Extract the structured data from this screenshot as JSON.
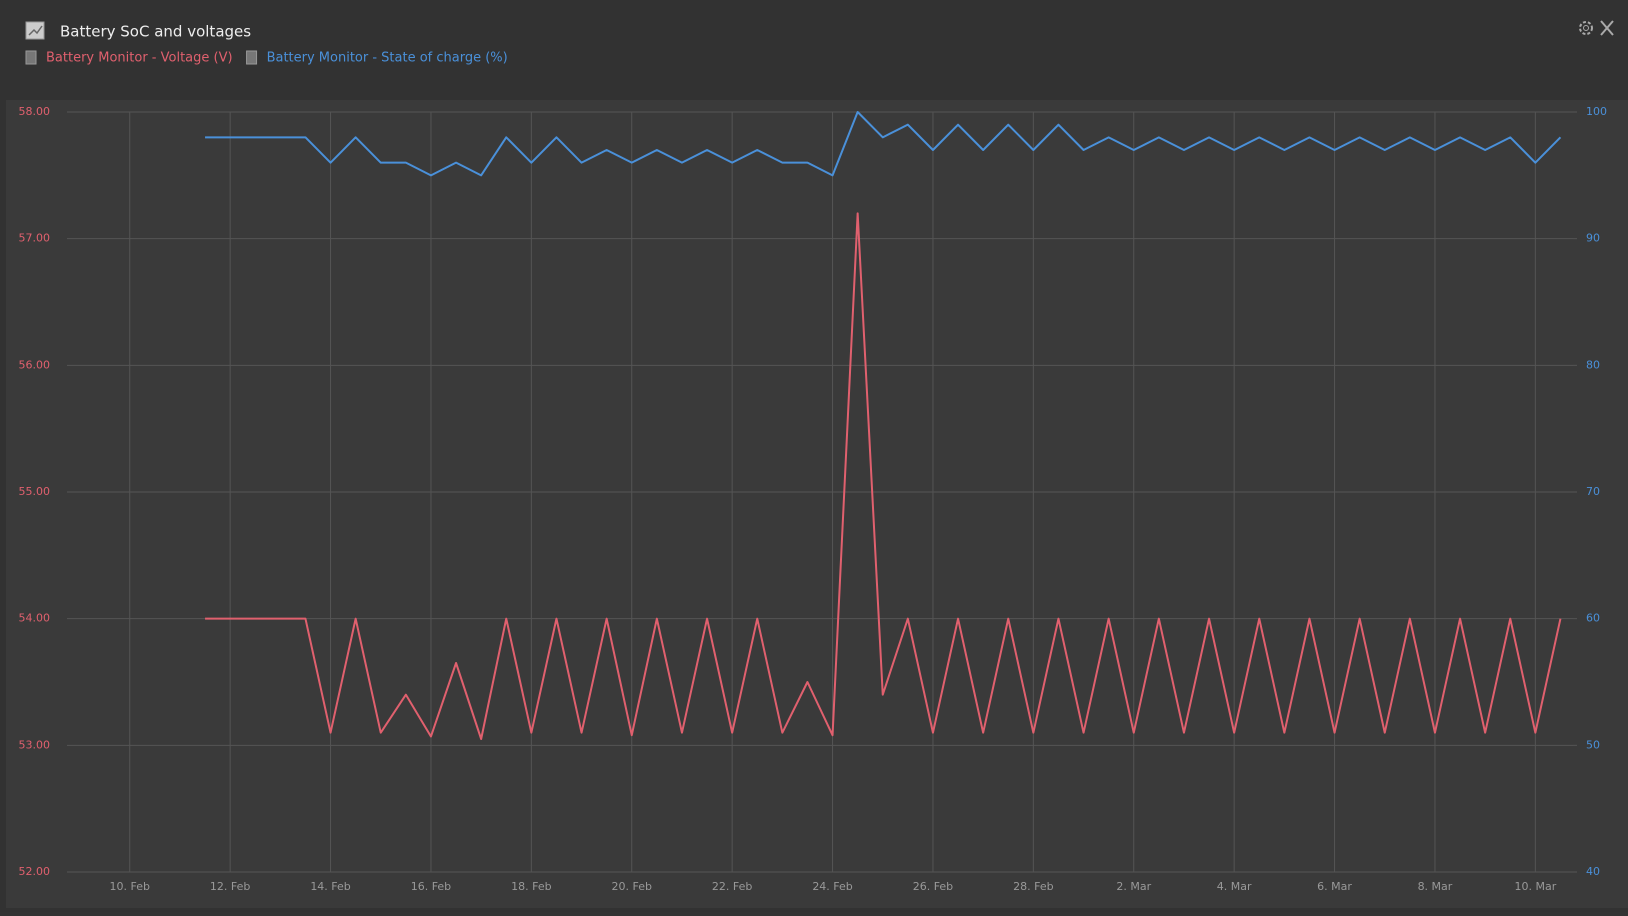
{
  "chart_data": {
    "type": "line",
    "title": "Battery SoC and voltages",
    "x": [
      1.5,
      2,
      2.5,
      3,
      3.5,
      4,
      4.5,
      5,
      5.5,
      6,
      6.5,
      7,
      7.5,
      8,
      8.5,
      9,
      9.5,
      10,
      10.5,
      11,
      11.5,
      12,
      12.5,
      13,
      13.5,
      14,
      14.5,
      15,
      15.5,
      16,
      16.5,
      17,
      17.5,
      18,
      18.5,
      19,
      19.5,
      20,
      20.5,
      21,
      21.5,
      22,
      22.5,
      23,
      23.5,
      24,
      24.5,
      25,
      25.5,
      26,
      26.5,
      27,
      27.5,
      28,
      28.5
    ],
    "series": [
      {
        "name": "Battery Monitor - Voltage (V)",
        "color": "#e0606e",
        "axis": "y",
        "values": [
          54.0,
          54.0,
          54.0,
          54.0,
          54.0,
          53.1,
          54.0,
          53.1,
          53.4,
          53.07,
          53.65,
          53.05,
          54.0,
          53.1,
          54.0,
          53.1,
          54.0,
          53.08,
          54.0,
          53.1,
          54.0,
          53.1,
          54.0,
          53.1,
          53.5,
          53.08,
          57.2,
          53.4,
          54.0,
          53.1,
          54.0,
          53.1,
          54.0,
          53.1,
          54.0,
          53.1,
          54.0,
          53.1,
          54.0,
          53.1,
          54.0,
          53.1,
          54.0,
          53.1,
          54.0,
          53.1,
          54.0,
          53.1,
          54.0,
          53.1,
          54.0,
          53.1,
          54.0,
          53.1,
          54.0
        ]
      },
      {
        "name": "Battery Monitor - State of charge (%)",
        "color": "#4a90d9",
        "axis": "y2",
        "values": [
          98,
          98,
          98,
          98,
          98,
          96,
          98,
          96,
          96,
          95,
          96,
          95,
          98,
          96,
          98,
          96,
          97,
          96,
          97,
          96,
          97,
          96,
          97,
          96,
          96,
          95,
          100,
          98,
          99,
          97,
          99,
          97,
          99,
          97,
          99,
          97,
          98,
          97,
          98,
          97,
          98,
          97,
          98,
          97,
          98,
          97,
          98,
          97,
          98,
          97,
          98,
          97,
          98,
          96,
          98
        ]
      }
    ],
    "xlim": [
      -1.25,
      28.75
    ],
    "xticks": [
      {
        "value": 0,
        "label": "10. Feb"
      },
      {
        "value": 2,
        "label": "12. Feb"
      },
      {
        "value": 4,
        "label": "14. Feb"
      },
      {
        "value": 6,
        "label": "16. Feb"
      },
      {
        "value": 8,
        "label": "18. Feb"
      },
      {
        "value": 10,
        "label": "20. Feb"
      },
      {
        "value": 12,
        "label": "22. Feb"
      },
      {
        "value": 14,
        "label": "24. Feb"
      },
      {
        "value": 16,
        "label": "26. Feb"
      },
      {
        "value": 18,
        "label": "28. Feb"
      },
      {
        "value": 20,
        "label": "2. Mar"
      },
      {
        "value": 22,
        "label": "4. Mar"
      },
      {
        "value": 24,
        "label": "6. Mar"
      },
      {
        "value": 26,
        "label": "8. Mar"
      },
      {
        "value": 28,
        "label": "10. Mar"
      }
    ],
    "ylim": [
      52,
      58
    ],
    "yticks": [
      {
        "value": 52,
        "label": "52.00"
      },
      {
        "value": 53,
        "label": "53.00"
      },
      {
        "value": 54,
        "label": "54.00"
      },
      {
        "value": 55,
        "label": "55.00"
      },
      {
        "value": 56,
        "label": "56.00"
      },
      {
        "value": 57,
        "label": "57.00"
      },
      {
        "value": 58,
        "label": "58.00"
      }
    ],
    "y2lim": [
      40,
      100
    ],
    "y2ticks": [
      40,
      50,
      60,
      70,
      80,
      90,
      100
    ],
    "grid": true
  }
}
